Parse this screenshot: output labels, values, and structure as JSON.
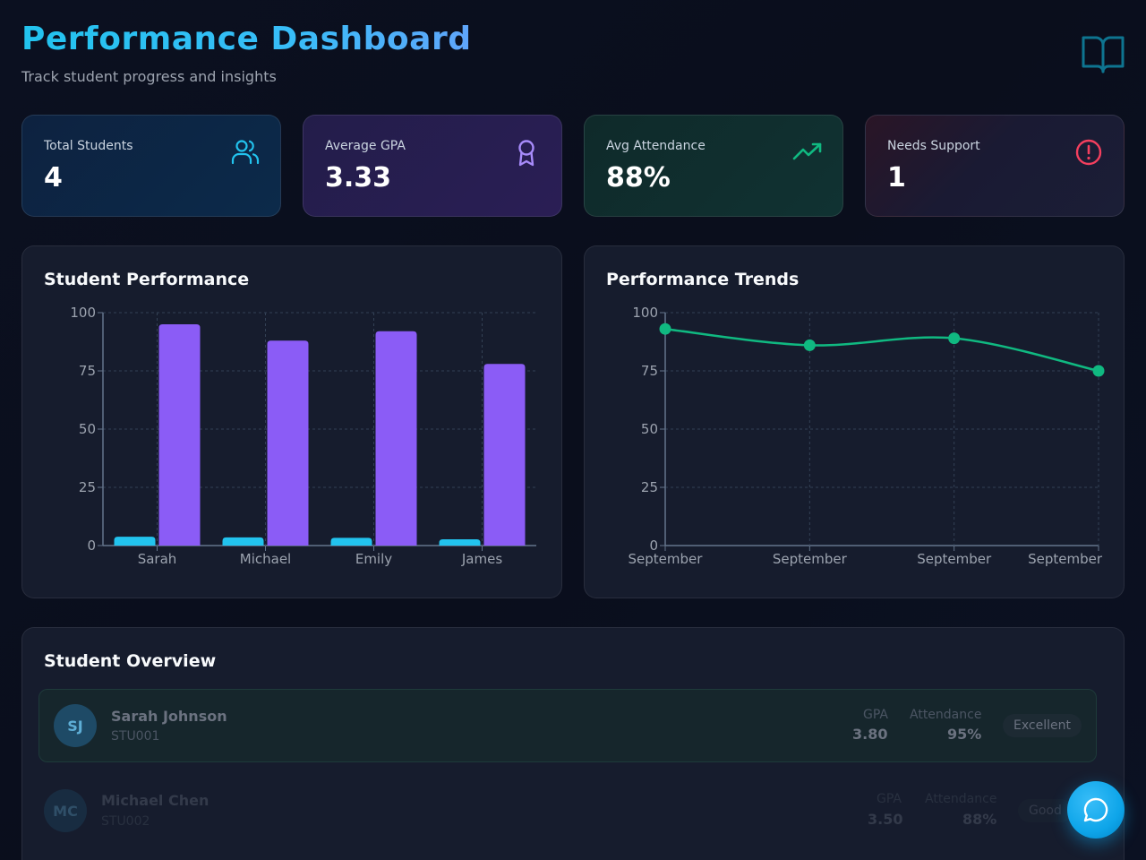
{
  "header": {
    "title": "Performance Dashboard",
    "subtitle": "Track student progress and insights"
  },
  "stats": [
    {
      "label": "Total Students",
      "value": "4",
      "icon": "users-icon",
      "color": "#22c3ee"
    },
    {
      "label": "Average GPA",
      "value": "3.33",
      "icon": "award-icon",
      "color": "#a78bfa"
    },
    {
      "label": "Avg Attendance",
      "value": "88%",
      "icon": "trending-up-icon",
      "color": "#10b981"
    },
    {
      "label": "Needs Support",
      "value": "1",
      "icon": "alert-circle-icon",
      "color": "#f43f5e"
    }
  ],
  "panels": {
    "performance_title": "Student Performance",
    "trends_title": "Performance Trends",
    "overview_title": "Student Overview"
  },
  "students": [
    {
      "initials": "SJ",
      "name": "Sarah Johnson",
      "id": "STU001",
      "gpa_label": "GPA",
      "gpa": "3.80",
      "attendance_label": "Attendance",
      "attendance": "95%",
      "status": "Excellent"
    },
    {
      "initials": "MC",
      "name": "Michael Chen",
      "id": "STU002",
      "gpa_label": "GPA",
      "gpa": "3.50",
      "attendance_label": "Attendance",
      "attendance": "88%",
      "status": "Good"
    }
  ],
  "chart_data": [
    {
      "type": "bar",
      "title": "Student Performance",
      "categories": [
        "Sarah",
        "Michael",
        "Emily",
        "James"
      ],
      "series": [
        {
          "values": [
            3.8,
            3.5,
            3.3,
            2.7
          ],
          "color": "#22c3ee"
        },
        {
          "values": [
            95,
            88,
            92,
            78
          ],
          "color": "#8b5cf6"
        }
      ],
      "ylim": [
        0,
        100
      ],
      "yticks": [
        "0",
        "25",
        "50",
        "75",
        "100"
      ],
      "grid": true
    },
    {
      "type": "line",
      "title": "Performance Trends",
      "categories": [
        "September",
        "September",
        "September",
        "September"
      ],
      "series": [
        {
          "values": [
            93,
            86,
            89,
            75
          ],
          "color": "#10b981"
        }
      ],
      "ylim": [
        0,
        100
      ],
      "yticks": [
        "0",
        "25",
        "50",
        "75",
        "100"
      ],
      "grid": true
    }
  ],
  "colors": {
    "accent": "#22c3ee",
    "purple": "#8b5cf6",
    "green": "#10b981",
    "red": "#f43f5e"
  }
}
